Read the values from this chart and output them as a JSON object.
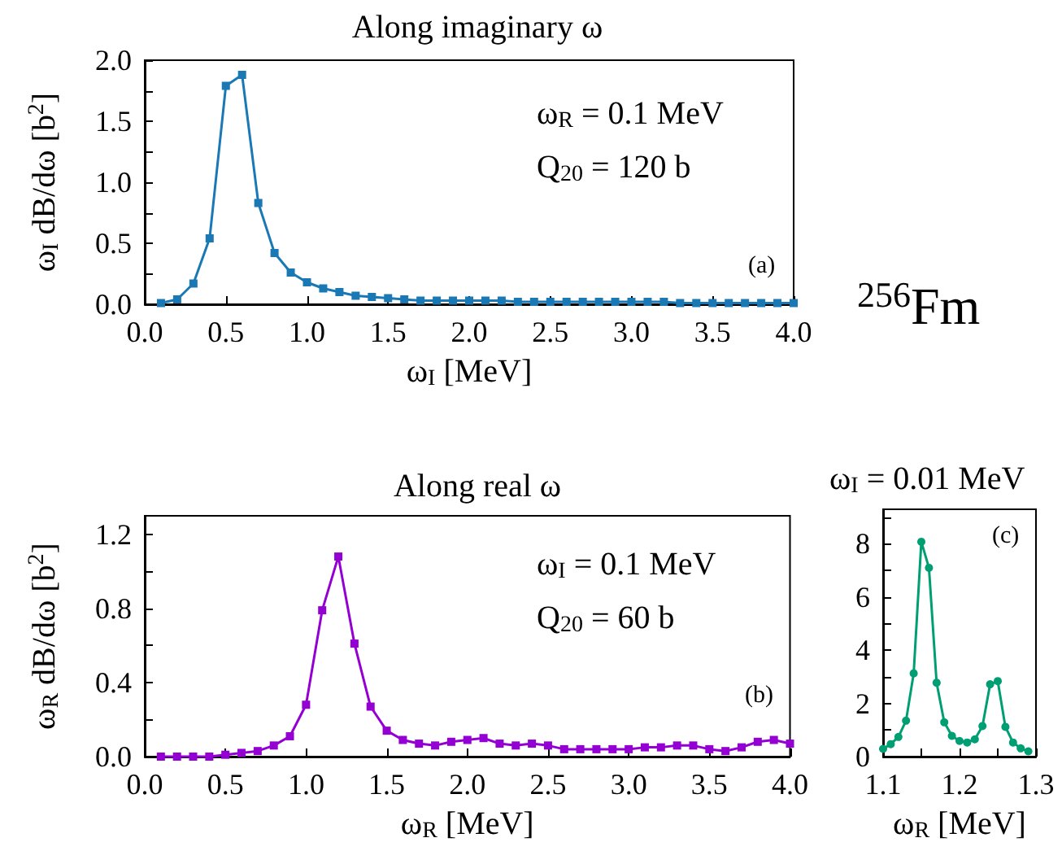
{
  "chart_data": [
    {
      "type": "line",
      "title": "Along imaginary ω",
      "xlabel": "ω$_{I}$ [MeV]",
      "ylabel": "ω$_{I}$ dB/dω [b$^{2}$]",
      "annotations": [
        "ω$_{R}$ = 0.1 MeV",
        "Q$_{20}$ = 120 b",
        "(a)",
        "$^{256}$Fm"
      ],
      "x": [
        0.1,
        0.2,
        0.3,
        0.4,
        0.5,
        0.6,
        0.7,
        0.8,
        0.9,
        1.0,
        1.1,
        1.2,
        1.3,
        1.4,
        1.5,
        1.6,
        1.7,
        1.8,
        1.9,
        2.0,
        2.1,
        2.2,
        2.3,
        2.4,
        2.5,
        2.6,
        2.7,
        2.8,
        2.9,
        3.0,
        3.1,
        3.2,
        3.3,
        3.4,
        3.5,
        3.6,
        3.7,
        3.8,
        3.9,
        4.0
      ],
      "series": [
        {
          "color": "#1a78b4",
          "values": [
            0.01,
            0.04,
            0.17,
            0.54,
            1.79,
            1.88,
            0.83,
            0.42,
            0.26,
            0.18,
            0.13,
            0.1,
            0.07,
            0.06,
            0.05,
            0.04,
            0.03,
            0.03,
            0.03,
            0.03,
            0.03,
            0.03,
            0.02,
            0.02,
            0.02,
            0.02,
            0.02,
            0.02,
            0.02,
            0.02,
            0.02,
            0.02,
            0.01,
            0.01,
            0.01,
            0.01,
            0.01,
            0.01,
            0.01,
            0.01
          ]
        }
      ],
      "xlim": [
        0,
        4
      ],
      "ylim": [
        0,
        2
      ],
      "xticks": [
        {
          "value": 0,
          "label": "0.0"
        },
        {
          "value": 0.5,
          "label": "0.5"
        },
        {
          "value": 1,
          "label": "1.0"
        },
        {
          "value": 1.5,
          "label": "1.5"
        },
        {
          "value": 2,
          "label": "2.0"
        },
        {
          "value": 2.5,
          "label": "2.5"
        },
        {
          "value": 3,
          "label": "3.0"
        },
        {
          "value": 3.5,
          "label": "3.5"
        },
        {
          "value": 4,
          "label": "4.0"
        }
      ],
      "yticks": [
        {
          "value": 0,
          "label": "0.0"
        },
        {
          "value": 0.25,
          "label": null
        },
        {
          "value": 0.5,
          "label": "0.5"
        },
        {
          "value": 0.75,
          "label": null
        },
        {
          "value": 1,
          "label": "1.0"
        },
        {
          "value": 1.25,
          "label": null
        },
        {
          "value": 1.5,
          "label": "1.5"
        },
        {
          "value": 1.75,
          "label": null
        },
        {
          "value": 2,
          "label": "2.0"
        }
      ],
      "marker": "square",
      "line_style": "solid",
      "grid": false
    },
    {
      "type": "line",
      "title": "Along real ω",
      "xlabel": "ω$_{R}$ [MeV]",
      "ylabel": "ω$_{R}$ dB/dω [b$^{2}$]",
      "annotations": [
        "ω$_{I}$ = 0.1 MeV",
        "Q$_{20}$ = 60 b",
        "(b)"
      ],
      "x": [
        0.1,
        0.2,
        0.3,
        0.4,
        0.5,
        0.6,
        0.7,
        0.8,
        0.9,
        1.0,
        1.1,
        1.2,
        1.3,
        1.4,
        1.5,
        1.6,
        1.7,
        1.8,
        1.9,
        2.0,
        2.1,
        2.2,
        2.3,
        2.4,
        2.5,
        2.6,
        2.7,
        2.8,
        2.9,
        3.0,
        3.1,
        3.2,
        3.3,
        3.4,
        3.5,
        3.6,
        3.7,
        3.8,
        3.9,
        4.0
      ],
      "series": [
        {
          "color": "#9400d3",
          "values": [
            0,
            0,
            0,
            0,
            0.01,
            0.02,
            0.03,
            0.06,
            0.11,
            0.28,
            0.79,
            1.08,
            0.61,
            0.27,
            0.14,
            0.09,
            0.07,
            0.06,
            0.08,
            0.09,
            0.1,
            0.07,
            0.06,
            0.07,
            0.06,
            0.04,
            0.04,
            0.04,
            0.04,
            0.04,
            0.05,
            0.05,
            0.06,
            0.06,
            0.04,
            0.03,
            0.05,
            0.08,
            0.09,
            0.07
          ]
        }
      ],
      "xlim": [
        0,
        4
      ],
      "ylim": [
        0,
        1.3
      ],
      "xticks": [
        {
          "value": 0,
          "label": "0.0"
        },
        {
          "value": 0.5,
          "label": "0.5"
        },
        {
          "value": 1,
          "label": "1.0"
        },
        {
          "value": 1.5,
          "label": "1.5"
        },
        {
          "value": 2,
          "label": "2.0"
        },
        {
          "value": 2.5,
          "label": "2.5"
        },
        {
          "value": 3,
          "label": "3.0"
        },
        {
          "value": 3.5,
          "label": "3.5"
        },
        {
          "value": 4,
          "label": "4.0"
        }
      ],
      "yticks": [
        {
          "value": 0,
          "label": "0.0"
        },
        {
          "value": 0.2,
          "label": null
        },
        {
          "value": 0.4,
          "label": "0.4"
        },
        {
          "value": 0.6,
          "label": null
        },
        {
          "value": 0.8,
          "label": "0.8"
        },
        {
          "value": 1.0,
          "label": null
        },
        {
          "value": 1.2,
          "label": "1.2"
        }
      ],
      "marker": "square",
      "line_style": "solid",
      "grid": false
    },
    {
      "type": "line",
      "title": "ω$_{I}$ = 0.01 MeV",
      "xlabel": "ω$_{R}$ [MeV]",
      "annotations": [
        "(c)"
      ],
      "x": [
        1.1,
        1.11,
        1.12,
        1.13,
        1.14,
        1.15,
        1.16,
        1.17,
        1.18,
        1.19,
        1.2,
        1.21,
        1.22,
        1.23,
        1.24,
        1.25,
        1.26,
        1.27,
        1.28,
        1.29
      ],
      "series": [
        {
          "color": "#009e73",
          "values": [
            0.29,
            0.47,
            0.74,
            1.35,
            3.13,
            8.08,
            7.1,
            2.78,
            1.29,
            0.78,
            0.59,
            0.53,
            0.65,
            1.15,
            2.72,
            2.84,
            1.12,
            0.53,
            0.31,
            0.2
          ]
        }
      ],
      "xlim": [
        1.1,
        1.3
      ],
      "ylim": [
        0,
        9.3
      ],
      "xticks": [
        1.1,
        {
          "value": 1.15,
          "label": null
        },
        1.2,
        {
          "value": 1.25,
          "label": null
        },
        1.3
      ],
      "yticks": [
        0,
        {
          "value": 1,
          "label": null
        },
        2,
        {
          "value": 3,
          "label": null
        },
        4,
        {
          "value": 5,
          "label": null
        },
        6,
        {
          "value": 7,
          "label": null
        },
        8,
        {
          "value": 9,
          "label": null
        }
      ],
      "marker": "circle",
      "line_style": "solid",
      "grid": false
    }
  ]
}
